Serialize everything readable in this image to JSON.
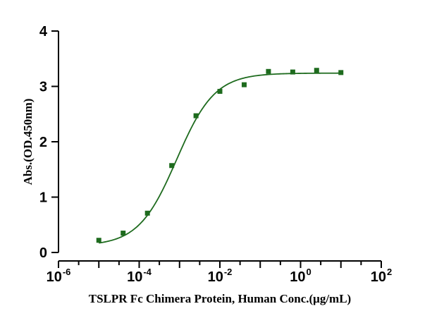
{
  "chart_data": {
    "type": "scatter",
    "title": "",
    "xlabel": "TSLPR Fc Chimera Protein, Human Conc.(μg/mL)",
    "ylabel": "Abs.(OD.450nm)",
    "x_scale": "log",
    "xlim": [
      1e-06,
      100
    ],
    "ylim": [
      0,
      4
    ],
    "x_ticks": [
      {
        "base": "10",
        "exp": "-6"
      },
      {
        "base": "10",
        "exp": "-4"
      },
      {
        "base": "10",
        "exp": "-2"
      },
      {
        "base": "10",
        "exp": "0"
      },
      {
        "base": "10",
        "exp": "2"
      }
    ],
    "y_ticks": [
      "0",
      "1",
      "2",
      "3",
      "4"
    ],
    "grid": false,
    "legend": "none",
    "colors": {
      "series": "#1e6b1e",
      "axis": "#000000"
    },
    "series": [
      {
        "x": [
          1e-05,
          4e-05,
          0.00016,
          0.00064,
          0.00256,
          0.01,
          0.04,
          0.16,
          0.64,
          2.5,
          10
        ],
        "y": [
          0.22,
          0.35,
          0.71,
          1.57,
          2.47,
          2.91,
          3.03,
          3.27,
          3.26,
          3.29,
          3.25
        ]
      }
    ],
    "fit": {
      "type": "4PL",
      "bottom": 0.12,
      "top": 3.24,
      "ec50": 0.00085,
      "hill": 0.92
    }
  }
}
